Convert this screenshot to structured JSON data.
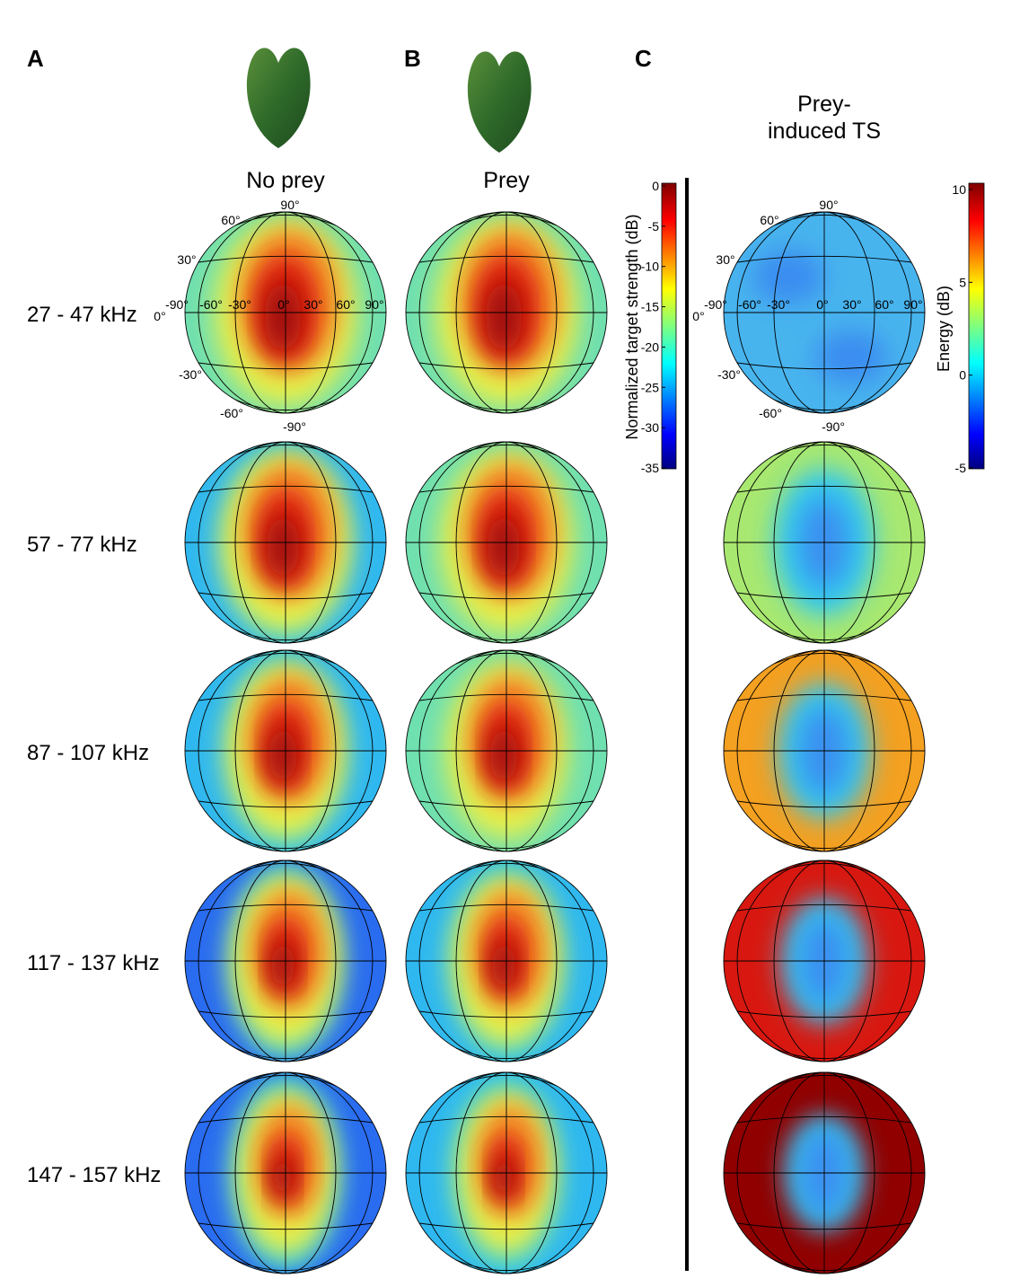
{
  "panels": [
    {
      "letter": "A",
      "title": [
        "No prey"
      ]
    },
    {
      "letter": "B",
      "title": [
        "Prey"
      ]
    },
    {
      "letter": "C",
      "title": [
        "Prey-",
        "induced TS"
      ]
    }
  ],
  "rows": [
    "27 - 47 kHz",
    "57 - 77 kHz",
    "87 - 107 kHz",
    "117 - 137 kHz",
    "147 - 157 kHz"
  ],
  "colorbar_ts": {
    "label": "Normalized target strength (dB)",
    "ticks": [
      0,
      -5,
      -10,
      -15,
      -20,
      -25,
      -30,
      -35
    ]
  },
  "colorbar_energy": {
    "label": "Energy (dB)",
    "ticks": [
      10,
      5,
      0,
      -5
    ]
  },
  "angle_labels": {
    "lat": [
      "90°",
      "60°",
      "30°",
      "0°",
      "-30°",
      "-60°",
      "-90°"
    ],
    "lon": [
      "-90°",
      "-60°",
      "-30°",
      "0°",
      "30°",
      "60°",
      "90°"
    ]
  }
}
